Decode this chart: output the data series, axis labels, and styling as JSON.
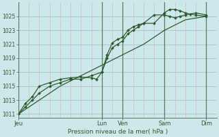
{
  "background_color": "#cde8ea",
  "grid_major_color": "#a8c8cc",
  "grid_minor_color": "#dbb8b8",
  "plot_bg": "#cde8ea",
  "line_color": "#2d5a2d",
  "xlabel": "Pression niveau de la mer( hPa )",
  "ylim": [
    1010.5,
    1027.0
  ],
  "yticks": [
    1011,
    1013,
    1015,
    1017,
    1019,
    1021,
    1023,
    1025
  ],
  "day_labels": [
    "Jeu",
    "Lun",
    "Ven",
    "Sam",
    "Dim"
  ],
  "day_positions": [
    0.0,
    4.0,
    5.0,
    7.0,
    9.0
  ],
  "xlim": [
    0.0,
    9.5
  ],
  "minor_x_positions": [
    0.5,
    1.0,
    1.5,
    2.0,
    2.5,
    3.0,
    3.5,
    4.5,
    5.5,
    6.0,
    6.5,
    7.5,
    8.0,
    8.5,
    9.0
  ],
  "line1_x": [
    0.0,
    0.33,
    0.67,
    1.0,
    1.5,
    2.0,
    2.5,
    3.0,
    3.5,
    4.0,
    4.25,
    4.5,
    4.75,
    5.0,
    5.25,
    5.5,
    5.75,
    6.0,
    6.5,
    7.0,
    7.25,
    7.5,
    7.75,
    8.0,
    8.25,
    8.5,
    9.0
  ],
  "line1_y": [
    1011.0,
    1012.0,
    1013.0,
    1014.0,
    1015.0,
    1015.5,
    1016.0,
    1016.0,
    1016.5,
    1017.0,
    1019.0,
    1020.5,
    1021.0,
    1021.5,
    1022.5,
    1023.0,
    1023.5,
    1024.0,
    1024.0,
    1025.5,
    1026.0,
    1026.0,
    1025.8,
    1025.5,
    1025.3,
    1025.2,
    1025.0
  ],
  "line2_x": [
    0.0,
    0.33,
    0.67,
    1.0,
    1.5,
    2.0,
    2.5,
    3.0,
    3.5,
    3.75,
    4.0,
    4.25,
    4.5,
    4.75,
    5.0,
    5.25,
    5.5,
    5.75,
    6.0,
    6.5,
    7.0,
    7.25,
    7.5,
    7.75,
    8.0,
    8.5,
    9.0
  ],
  "line2_y": [
    1011.0,
    1012.5,
    1013.5,
    1015.0,
    1015.5,
    1016.0,
    1016.2,
    1016.3,
    1016.2,
    1016.0,
    1017.0,
    1019.5,
    1021.2,
    1021.7,
    1022.0,
    1023.0,
    1023.5,
    1023.8,
    1024.0,
    1025.2,
    1025.2,
    1025.0,
    1024.8,
    1025.0,
    1025.2,
    1025.5,
    1025.2
  ],
  "line3_x": [
    0.0,
    1.0,
    2.0,
    3.0,
    4.0,
    5.0,
    6.0,
    7.0,
    8.0,
    9.0
  ],
  "line3_y": [
    1011.0,
    1013.0,
    1015.0,
    1016.5,
    1018.0,
    1019.5,
    1021.0,
    1023.0,
    1024.5,
    1025.0
  ]
}
